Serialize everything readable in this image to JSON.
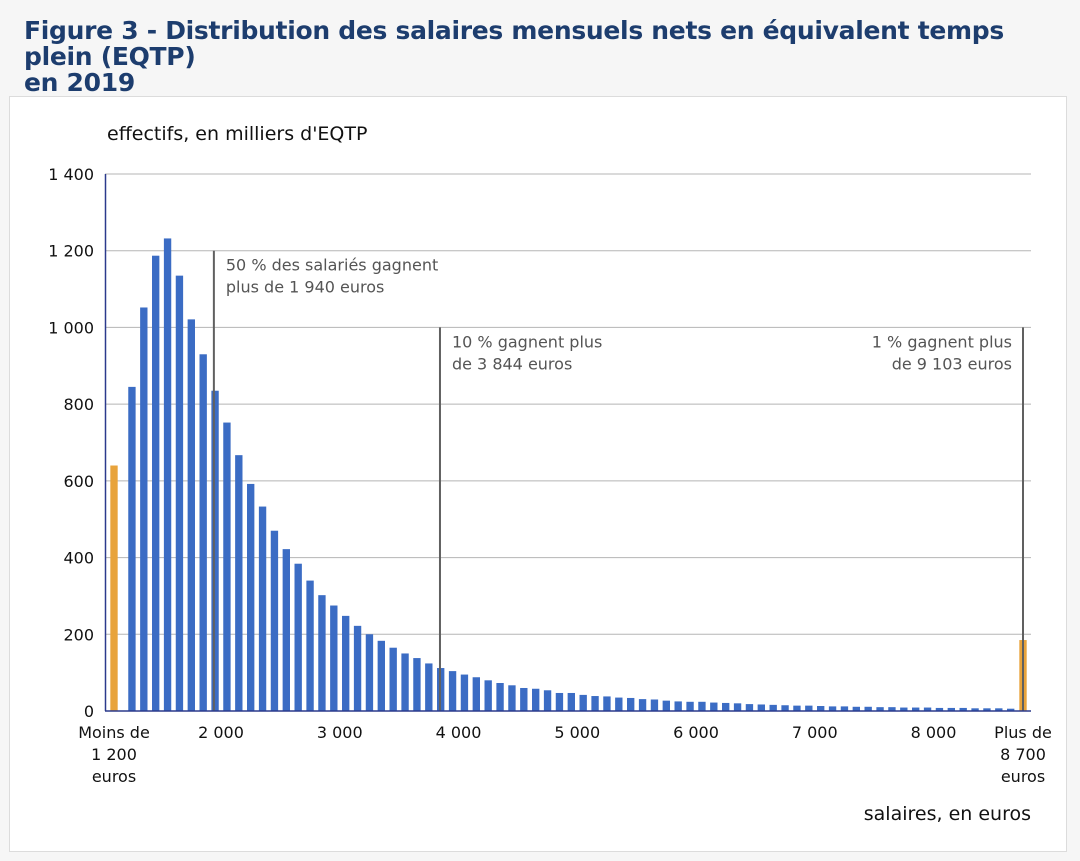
{
  "title_line1": "Figure 3 - Distribution des salaires mensuels nets en équivalent temps plein (EQTP)",
  "title_line2": "en 2019",
  "chart_data": {
    "type": "bar",
    "ylabel": "effectifs, en milliers d'EQTP",
    "xlabel": "salaires, en euros",
    "ylim": [
      0,
      1400
    ],
    "yticks": [
      0,
      200,
      400,
      600,
      800,
      1000,
      1200,
      1400
    ],
    "ytick_labels": [
      "0",
      "200",
      "400",
      "600",
      "800",
      "1 000",
      "1 200",
      "1 400"
    ],
    "xticks": [
      {
        "value": 2000,
        "label": "2 000"
      },
      {
        "value": 3000,
        "label": "3 000"
      },
      {
        "value": 4000,
        "label": "4 000"
      },
      {
        "value": 5000,
        "label": "5 000"
      },
      {
        "value": 6000,
        "label": "6 000"
      },
      {
        "value": 7000,
        "label": "7 000"
      },
      {
        "value": 8000,
        "label": "8 000"
      }
    ],
    "x_start": 1200,
    "bin_width": 100,
    "open_bins": {
      "low": {
        "value": 640,
        "label": [
          "Moins de",
          "1 200",
          "euros"
        ],
        "color": "#e8a33b"
      },
      "high": {
        "value": 185,
        "label": [
          "Plus de",
          "8 700",
          "euros"
        ],
        "color": "#e8a33b"
      }
    },
    "bar_color": "#3b6cc4",
    "values": [
      845,
      1052,
      1187,
      1232,
      1135,
      1021,
      930,
      835,
      752,
      667,
      592,
      533,
      470,
      422,
      384,
      340,
      302,
      275,
      248,
      222,
      200,
      183,
      165,
      150,
      138,
      124,
      112,
      104,
      95,
      88,
      80,
      73,
      67,
      60,
      58,
      54,
      47,
      47,
      42,
      39,
      38,
      35,
      34,
      31,
      30,
      27,
      25,
      24,
      24,
      22,
      21,
      20,
      18,
      17,
      16,
      15,
      14,
      14,
      13,
      12,
      12,
      11,
      11,
      10,
      10,
      9,
      9,
      9,
      8,
      8,
      8,
      7,
      7,
      7,
      6
    ],
    "annotations": [
      {
        "x": 1940,
        "top": 1200,
        "lines": [
          "50 % des salariés gagnent",
          "plus de 1 940 euros"
        ],
        "align": "left"
      },
      {
        "x": 3844,
        "top": 1000,
        "lines": [
          "10 % gagnent plus",
          "de 3 844 euros"
        ],
        "align": "left"
      },
      {
        "x": 9103,
        "top": 1000,
        "lines": [
          "1 % gagnent plus",
          "de 9 103 euros"
        ],
        "align": "right"
      }
    ]
  }
}
